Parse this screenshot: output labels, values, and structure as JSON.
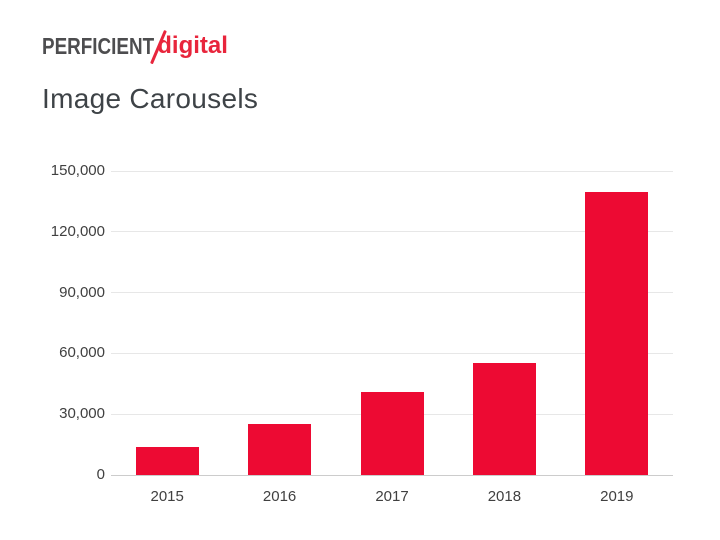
{
  "logo": {
    "part1": "PERFICIENT",
    "slash": "/",
    "part2": "digital",
    "part1_color": "#4D4D4F",
    "part2_color": "#E8253C"
  },
  "title": "Image Carousels",
  "colors": {
    "bar": "#ED0A33",
    "gridline": "#E7E7E7",
    "axis_line": "#CCCCCC",
    "tick_label_text": "#404040",
    "title_text": "#3E4347"
  },
  "chart_data": {
    "type": "bar",
    "title": "Image Carousels",
    "categories": [
      "2015",
      "2016",
      "2017",
      "2018",
      "2019"
    ],
    "values": [
      14000,
      25000,
      41000,
      55500,
      139500
    ],
    "xlabel": "",
    "ylabel": "",
    "ylim": [
      0,
      150000
    ],
    "ytick_interval": 30000,
    "ytick_labels": [
      "0",
      "30,000",
      "60,000",
      "90,000",
      "120,000",
      "150,000"
    ],
    "grid": true,
    "legend": false,
    "bar_color": "#ED0A33"
  }
}
